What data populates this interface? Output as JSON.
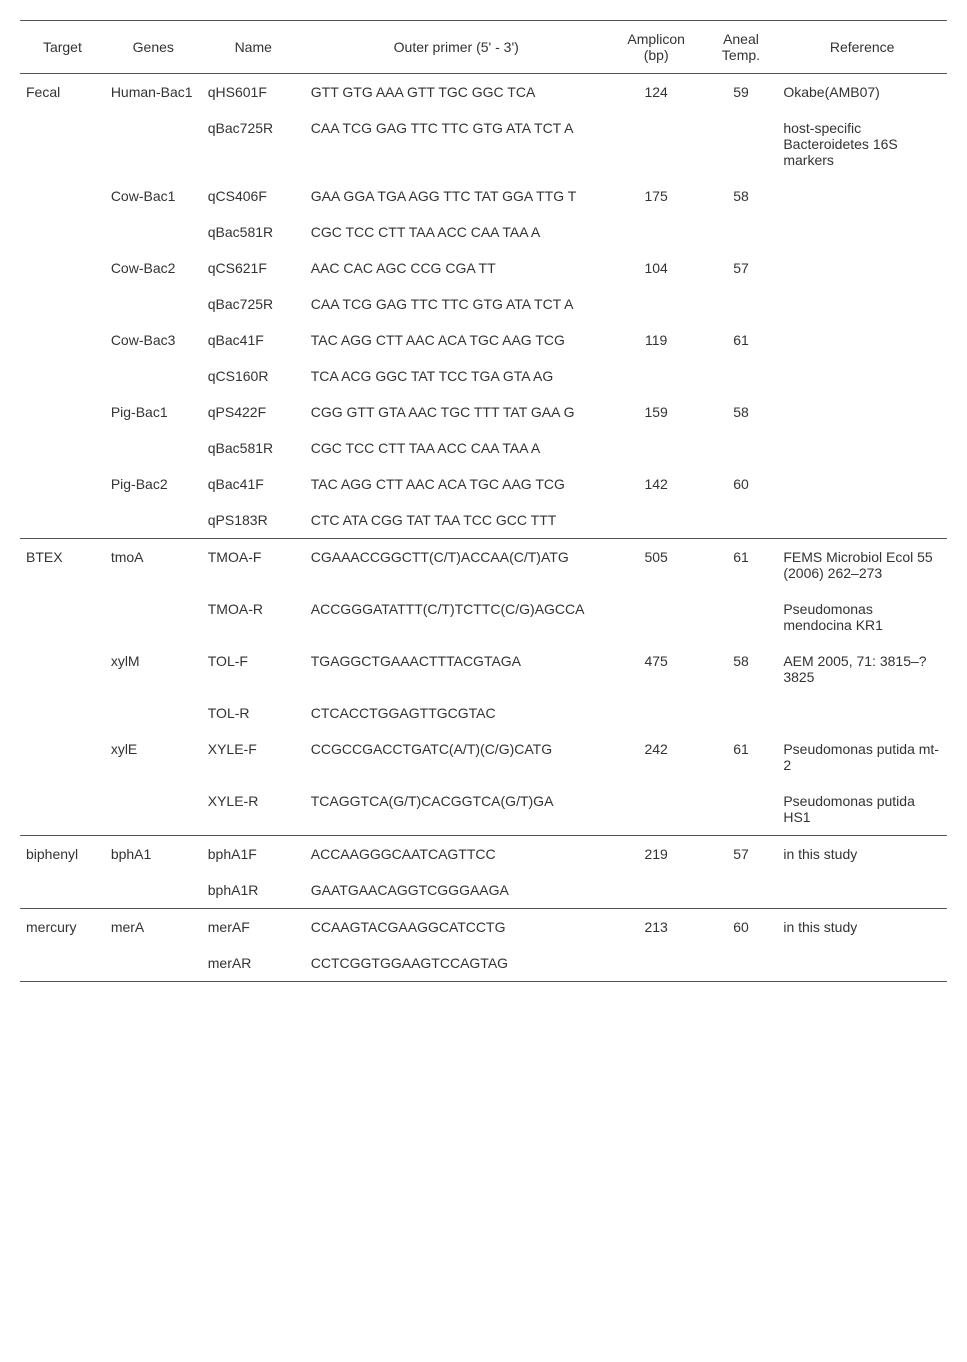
{
  "headers": {
    "target": "Target",
    "genes": "Genes",
    "name": "Name",
    "primer": "Outer primer (5' - 3')",
    "amplicon": "Amplicon (bp)",
    "aneal": "Aneal Temp.",
    "reference": "Reference"
  },
  "rows": [
    {
      "target": "Fecal",
      "genes": "Human-Bac1",
      "name": "qHS601F",
      "primer": "GTT GTG AAA GTT TGC GGC TCA",
      "amplicon": "124",
      "aneal": "59",
      "reference": "Okabe(AMB07)"
    },
    {
      "target": "",
      "genes": "",
      "name": "qBac725R",
      "primer": "CAA TCG GAG TTC TTC GTG ATA TCT A",
      "amplicon": "",
      "aneal": "",
      "reference": "host-specific Bacteroidetes 16S markers"
    },
    {
      "target": "",
      "genes": "Cow-Bac1",
      "name": "qCS406F",
      "primer": "GAA GGA TGA AGG TTC TAT GGA TTG T",
      "amplicon": "175",
      "aneal": "58",
      "reference": ""
    },
    {
      "target": "",
      "genes": "",
      "name": "qBac581R",
      "primer": "CGC TCC CTT TAA ACC CAA TAA A",
      "amplicon": "",
      "aneal": "",
      "reference": ""
    },
    {
      "target": "",
      "genes": "Cow-Bac2",
      "name": "qCS621F",
      "primer": "AAC CAC AGC CCG CGA TT",
      "amplicon": "104",
      "aneal": "57",
      "reference": ""
    },
    {
      "target": "",
      "genes": "",
      "name": "qBac725R",
      "primer": "CAA TCG GAG TTC TTC GTG ATA TCT A",
      "amplicon": "",
      "aneal": "",
      "reference": ""
    },
    {
      "target": "",
      "genes": "Cow-Bac3",
      "name": "qBac41F",
      "primer": "TAC AGG CTT AAC ACA TGC AAG TCG",
      "amplicon": "119",
      "aneal": "61",
      "reference": ""
    },
    {
      "target": "",
      "genes": "",
      "name": "qCS160R",
      "primer": "TCA ACG GGC TAT TCC TGA GTA AG",
      "amplicon": "",
      "aneal": "",
      "reference": ""
    },
    {
      "target": "",
      "genes": "Pig-Bac1",
      "name": "qPS422F",
      "primer": "CGG GTT GTA AAC TGC TTT TAT GAA G",
      "amplicon": "159",
      "aneal": "58",
      "reference": ""
    },
    {
      "target": "",
      "genes": "",
      "name": "qBac581R",
      "primer": "CGC TCC CTT TAA ACC CAA TAA A",
      "amplicon": "",
      "aneal": "",
      "reference": ""
    },
    {
      "target": "",
      "genes": "Pig-Bac2",
      "name": "qBac41F",
      "primer": "TAC AGG CTT AAC ACA TGC AAG TCG",
      "amplicon": "142",
      "aneal": "60",
      "reference": ""
    },
    {
      "target": "",
      "genes": "",
      "name": "qPS183R",
      "primer": "CTC ATA CGG TAT TAA TCC GCC TTT",
      "amplicon": "",
      "aneal": "",
      "reference": ""
    },
    {
      "target": "BTEX",
      "genes": "tmoA",
      "name": "TMOA-F",
      "primer": "CGAAACCGGCTT(C/T)ACCAA(C/T)ATG",
      "amplicon": "505",
      "aneal": "61",
      "reference": "FEMS Microbiol Ecol 55 (2006) 262–273",
      "section": true
    },
    {
      "target": "",
      "genes": "",
      "name": "TMOA-R",
      "primer": "ACCGGGATATTT(C/T)TCTTC(C/G)AGCCA",
      "amplicon": "",
      "aneal": "",
      "reference": "Pseudomonas mendocina KR1"
    },
    {
      "target": "",
      "genes": "xylM",
      "name": "TOL-F",
      "primer": "TGAGGCTGAAACTTTACGTAGA",
      "amplicon": "475",
      "aneal": "58",
      "reference": "AEM 2005, 71: 3815–?3825"
    },
    {
      "target": "",
      "genes": "",
      "name": "TOL-R",
      "primer": "CTCACCTGGAGTTGCGTAC",
      "amplicon": "",
      "aneal": "",
      "reference": ""
    },
    {
      "target": "",
      "genes": "xylE",
      "name": "XYLE-F",
      "primer": "CCGCCGACCTGATC(A/T)(C/G)CATG",
      "amplicon": "242",
      "aneal": "61",
      "reference": "Pseudomonas putida mt-2"
    },
    {
      "target": "",
      "genes": "",
      "name": "XYLE-R",
      "primer": "TCAGGTCA(G/T)CACGGTCA(G/T)GA",
      "amplicon": "",
      "aneal": "",
      "reference": "Pseudomonas putida HS1"
    },
    {
      "target": "biphenyl",
      "genes": "bphA1",
      "name": "bphA1F",
      "primer": "ACCAAGGGCAATCAGTTCC",
      "amplicon": "219",
      "aneal": "57",
      "reference": "in this study",
      "section": true
    },
    {
      "target": "",
      "genes": "",
      "name": "bphA1R",
      "primer": "GAATGAACAGGTCGGGAAGA",
      "amplicon": "",
      "aneal": "",
      "reference": ""
    },
    {
      "target": "mercury",
      "genes": "merA",
      "name": "merAF",
      "primer": "CCAAGTACGAAGGCATCCTG",
      "amplicon": "213",
      "aneal": "60",
      "reference": "in this study",
      "section": true
    },
    {
      "target": "",
      "genes": "",
      "name": "merAR",
      "primer": "CCTCGGTGGAAGTCCAGTAG",
      "amplicon": "",
      "aneal": "",
      "reference": "",
      "last": true
    }
  ]
}
